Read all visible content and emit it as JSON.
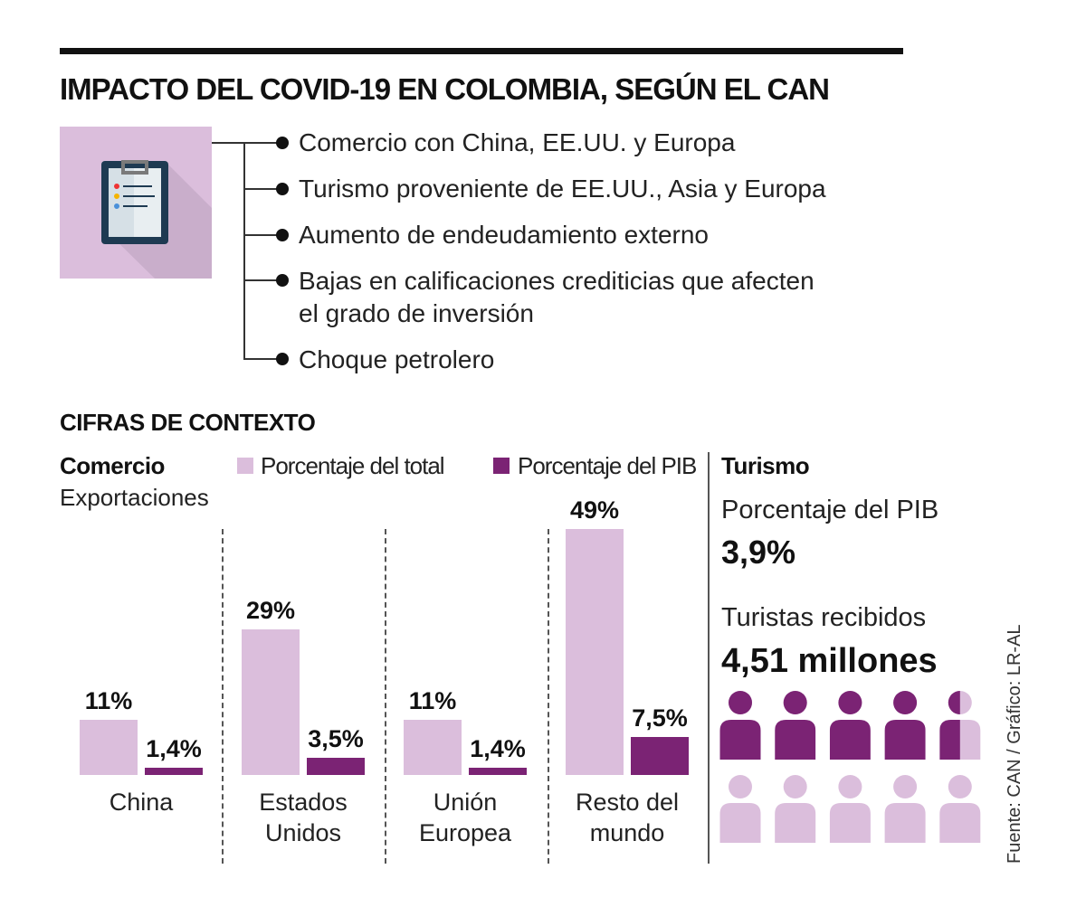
{
  "title": "IMPACTO DEL COVID-19 EN COLOMBIA, SEGÚN EL CAN",
  "impact_items": [
    "Comercio con China, EE.UU. y Europa",
    "Turismo proveniente de EE.UU., Asia y Europa",
    "Aumento de endeudamiento externo",
    "Bajas en calificaciones crediticias que afecten",
    "el grado de inversión",
    "Choque petrolero"
  ],
  "icon": "clipboard-icon",
  "section_title": "CIFRAS DE CONTEXTO",
  "colors": {
    "total": "#dbbedc",
    "pib": "#7b2374",
    "icon_bg": "#dbbedc"
  },
  "chart_data": {
    "type": "bar",
    "title": "Comercio",
    "subtitle": "Exportaciones",
    "categories": [
      "China",
      "Estados Unidos",
      "Unión Europea",
      "Resto del mundo"
    ],
    "category_lines": [
      [
        "China"
      ],
      [
        "Estados",
        "Unidos"
      ],
      [
        "Unión",
        "Europea"
      ],
      [
        "Resto del",
        "mundo"
      ]
    ],
    "series": [
      {
        "name": "Porcentaje del total",
        "values": [
          11,
          29,
          11,
          49
        ],
        "labels": [
          "11%",
          "29%",
          "11%",
          "49%"
        ]
      },
      {
        "name": "Porcentaje del PIB",
        "values": [
          1.4,
          3.5,
          1.4,
          7.5
        ],
        "labels": [
          "1,4%",
          "3,5%",
          "1,4%",
          "7,5%"
        ]
      }
    ],
    "legend": "top",
    "grid": false
  },
  "turismo": {
    "title": "Turismo",
    "pib_label": "Porcentaje del PIB",
    "pib_value": "3,9%",
    "tourists_label": "Turistas recibidos",
    "tourists_value": "4,51 millones",
    "pictogram": {
      "icon": "person-icon",
      "total": 10,
      "filled": 4.5
    }
  },
  "source": "Fuente: CAN / Gráfico: LR-AL"
}
